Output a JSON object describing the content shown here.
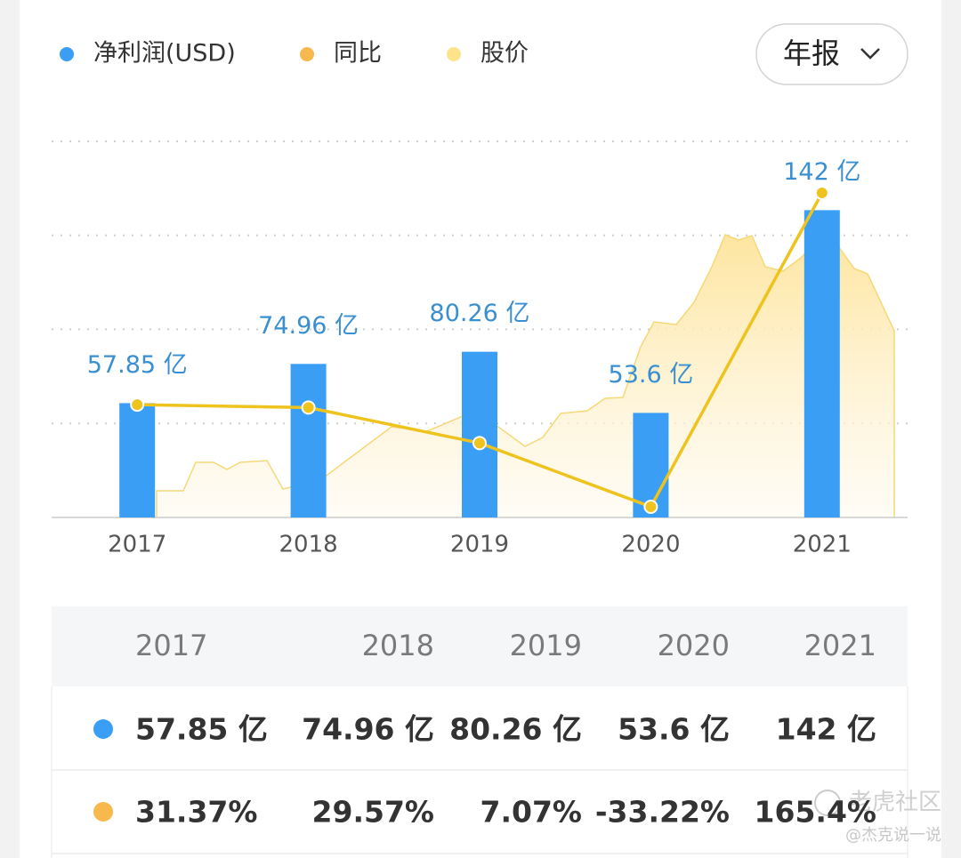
{
  "period_selector": "年报",
  "watermark": {
    "brand": "老虎社区",
    "author": "@杰克说一说"
  },
  "chart_data": {
    "type": "bar",
    "categories": [
      "2017",
      "2018",
      "2019",
      "2020",
      "2021"
    ],
    "ylim": [
      8,
      172
    ],
    "y2lim": [
      -40,
      198
    ],
    "grid": true,
    "series": [
      {
        "name": "净利润(USD)",
        "type": "bar",
        "color": "#3a9ef5",
        "label_color": "#3a8fd0",
        "values": [
          57.85,
          74.96,
          80.26,
          53.6,
          142
        ],
        "value_labels": [
          "57.85 亿",
          "74.96 亿",
          "80.26 亿",
          "53.6 亿",
          "142 亿"
        ]
      },
      {
        "name": "同比",
        "type": "line",
        "axis": "y2",
        "color": "#f7b84e",
        "line_color": "#efc31e",
        "values": [
          31.37,
          29.57,
          7.07,
          -33.22,
          165.4
        ],
        "value_labels": [
          "31.37%",
          "29.57%",
          "7.07%",
          "-33.22%",
          "165.4%"
        ]
      },
      {
        "name": "股价",
        "type": "area",
        "color": "#fde38a"
      }
    ]
  }
}
